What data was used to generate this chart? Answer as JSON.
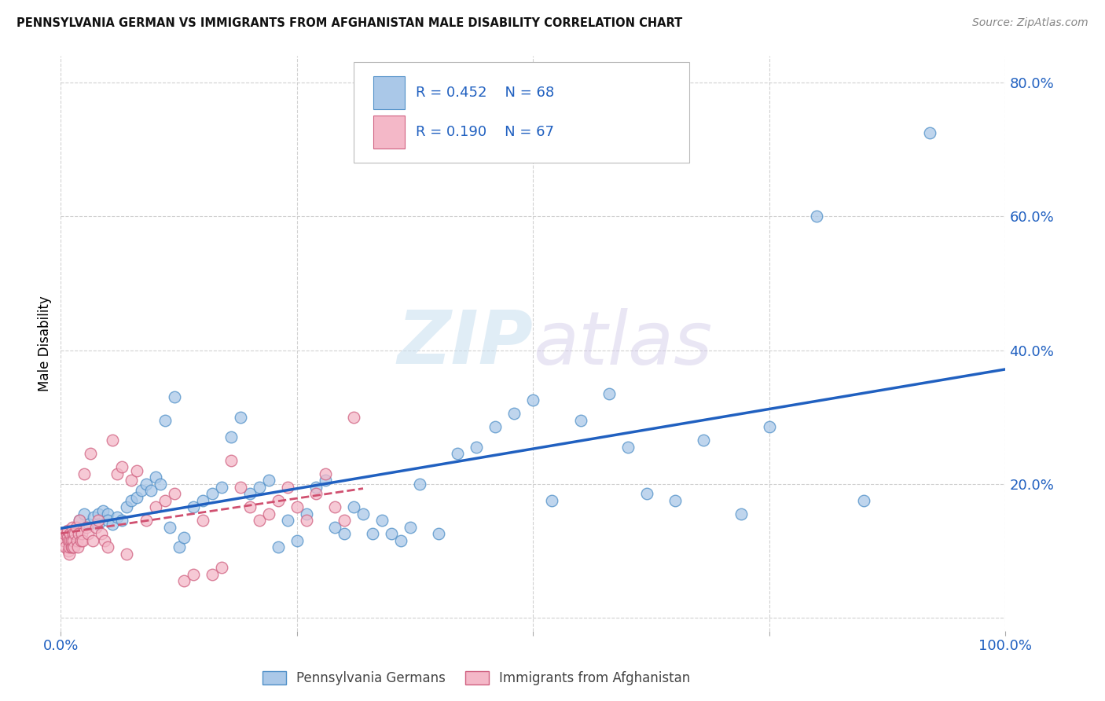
{
  "title": "PENNSYLVANIA GERMAN VS IMMIGRANTS FROM AFGHANISTAN MALE DISABILITY CORRELATION CHART",
  "source": "Source: ZipAtlas.com",
  "ylabel": "Male Disability",
  "y_ticks": [
    0.0,
    0.2,
    0.4,
    0.6,
    0.8
  ],
  "y_tick_labels": [
    "",
    "20.0%",
    "40.0%",
    "60.0%",
    "80.0%"
  ],
  "x_range": [
    0.0,
    1.0
  ],
  "y_range": [
    -0.02,
    0.84
  ],
  "legend_r1": "R = 0.452",
  "legend_n1": "N = 68",
  "legend_r2": "R = 0.190",
  "legend_n2": "N = 67",
  "color_blue_fill": "#aac8e8",
  "color_blue_edge": "#5090c8",
  "color_pink_fill": "#f4b8c8",
  "color_pink_edge": "#d06080",
  "color_line_blue": "#2060c0",
  "color_line_pink": "#d05070",
  "background": "#ffffff",
  "watermark_zip": "ZIP",
  "watermark_atlas": "atlas",
  "grid_color": "#cccccc",
  "pa_german_x": [
    0.02,
    0.025,
    0.03,
    0.035,
    0.04,
    0.04,
    0.045,
    0.05,
    0.05,
    0.055,
    0.06,
    0.065,
    0.07,
    0.075,
    0.08,
    0.085,
    0.09,
    0.095,
    0.1,
    0.105,
    0.11,
    0.115,
    0.12,
    0.125,
    0.13,
    0.14,
    0.15,
    0.16,
    0.17,
    0.18,
    0.19,
    0.2,
    0.21,
    0.22,
    0.23,
    0.24,
    0.25,
    0.26,
    0.27,
    0.28,
    0.29,
    0.3,
    0.31,
    0.32,
    0.33,
    0.34,
    0.35,
    0.36,
    0.37,
    0.38,
    0.4,
    0.42,
    0.44,
    0.46,
    0.48,
    0.5,
    0.52,
    0.55,
    0.58,
    0.6,
    0.62,
    0.65,
    0.68,
    0.72,
    0.75,
    0.8,
    0.85,
    0.92
  ],
  "pa_german_y": [
    0.145,
    0.155,
    0.14,
    0.15,
    0.155,
    0.14,
    0.16,
    0.155,
    0.145,
    0.14,
    0.15,
    0.145,
    0.165,
    0.175,
    0.18,
    0.19,
    0.2,
    0.19,
    0.21,
    0.2,
    0.295,
    0.135,
    0.33,
    0.105,
    0.12,
    0.165,
    0.175,
    0.185,
    0.195,
    0.27,
    0.3,
    0.185,
    0.195,
    0.205,
    0.105,
    0.145,
    0.115,
    0.155,
    0.195,
    0.205,
    0.135,
    0.125,
    0.165,
    0.155,
    0.125,
    0.145,
    0.125,
    0.115,
    0.135,
    0.2,
    0.125,
    0.245,
    0.255,
    0.285,
    0.305,
    0.325,
    0.175,
    0.295,
    0.335,
    0.255,
    0.185,
    0.175,
    0.265,
    0.155,
    0.285,
    0.6,
    0.175,
    0.725
  ],
  "afghan_x": [
    0.003,
    0.004,
    0.005,
    0.006,
    0.007,
    0.007,
    0.008,
    0.008,
    0.009,
    0.009,
    0.01,
    0.01,
    0.011,
    0.011,
    0.012,
    0.012,
    0.013,
    0.013,
    0.014,
    0.015,
    0.016,
    0.017,
    0.018,
    0.019,
    0.02,
    0.021,
    0.022,
    0.023,
    0.025,
    0.027,
    0.029,
    0.031,
    0.034,
    0.037,
    0.04,
    0.043,
    0.046,
    0.05,
    0.055,
    0.06,
    0.065,
    0.07,
    0.075,
    0.08,
    0.09,
    0.1,
    0.11,
    0.12,
    0.13,
    0.14,
    0.15,
    0.16,
    0.17,
    0.18,
    0.19,
    0.2,
    0.21,
    0.22,
    0.23,
    0.24,
    0.25,
    0.26,
    0.27,
    0.28,
    0.29,
    0.3,
    0.31
  ],
  "afghan_y": [
    0.115,
    0.125,
    0.105,
    0.125,
    0.12,
    0.13,
    0.1,
    0.115,
    0.095,
    0.105,
    0.115,
    0.125,
    0.105,
    0.115,
    0.135,
    0.105,
    0.125,
    0.115,
    0.105,
    0.125,
    0.135,
    0.115,
    0.105,
    0.125,
    0.145,
    0.115,
    0.125,
    0.115,
    0.215,
    0.135,
    0.125,
    0.245,
    0.115,
    0.135,
    0.145,
    0.125,
    0.115,
    0.105,
    0.265,
    0.215,
    0.225,
    0.095,
    0.205,
    0.22,
    0.145,
    0.165,
    0.175,
    0.185,
    0.055,
    0.065,
    0.145,
    0.065,
    0.075,
    0.235,
    0.195,
    0.165,
    0.145,
    0.155,
    0.175,
    0.195,
    0.165,
    0.145,
    0.185,
    0.215,
    0.165,
    0.145,
    0.3
  ]
}
